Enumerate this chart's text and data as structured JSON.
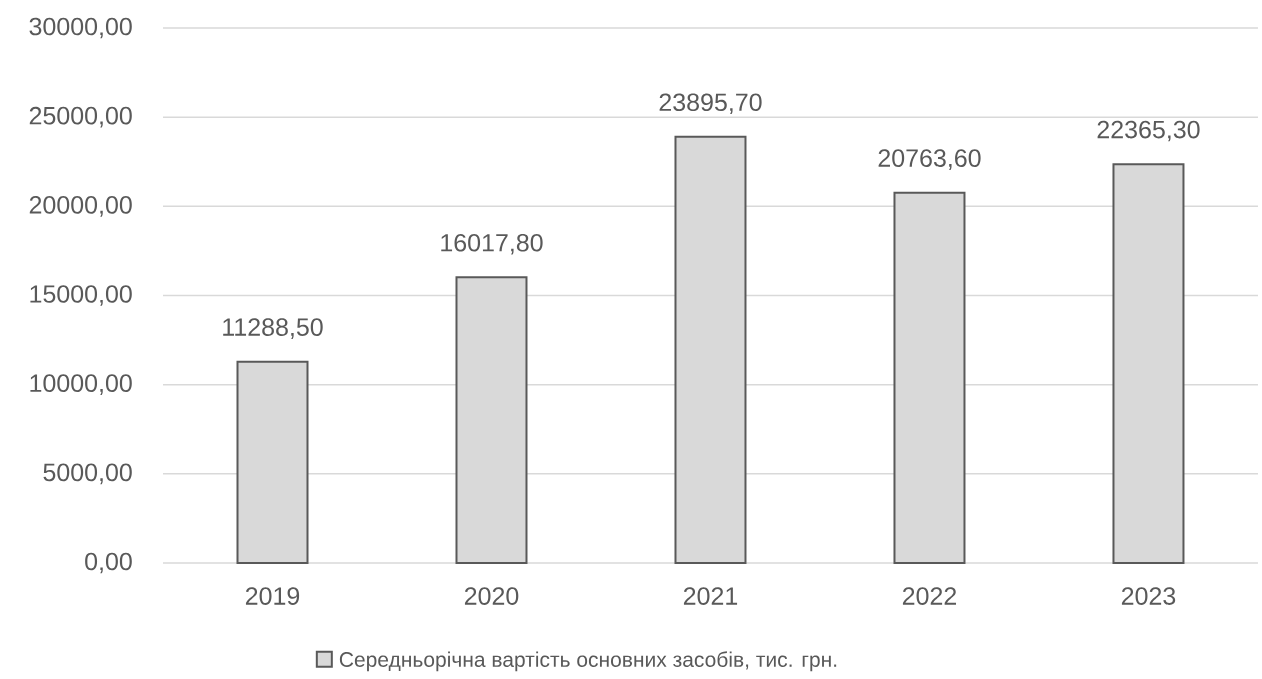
{
  "chart_data": {
    "type": "bar",
    "categories": [
      "2019",
      "2020",
      "2021",
      "2022",
      "2023"
    ],
    "series": [
      {
        "name": "Середньорічна вартість основних засобів, тис. грн.",
        "color": "#d9d9d9",
        "values": [
          11288.5,
          16017.8,
          23895.7,
          20763.6,
          22365.3
        ],
        "value_labels": [
          "11288,50",
          "16017,80",
          "23895,70",
          "20763,60",
          "22365,30"
        ]
      }
    ],
    "ylim": [
      0,
      30000
    ],
    "yticks": [
      {
        "value": 0,
        "label": "0,00"
      },
      {
        "value": 5000,
        "label": "5000,00"
      },
      {
        "value": 10000,
        "label": "10000,00"
      },
      {
        "value": 15000,
        "label": "15000,00"
      },
      {
        "value": 20000,
        "label": "20000,00"
      },
      {
        "value": 25000,
        "label": "25000,00"
      },
      {
        "value": 30000,
        "label": "30000,00"
      }
    ],
    "grid": "y",
    "legend": "bottom"
  }
}
